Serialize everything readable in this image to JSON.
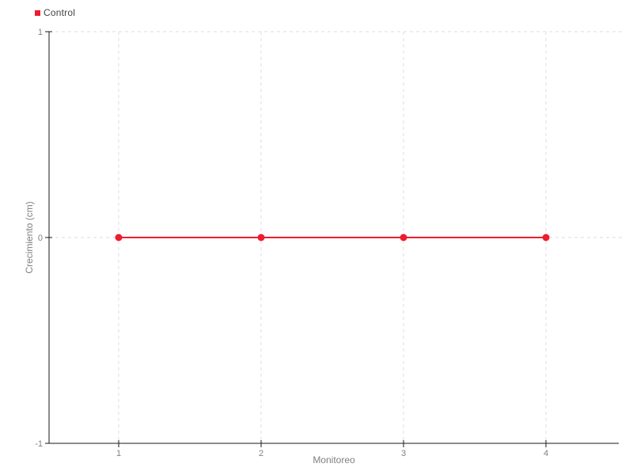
{
  "colors": {
    "background": "#ffffff",
    "grid": "#dddddd",
    "axis": "#1a1a1a",
    "tick_text": "#808080",
    "axis_title_text": "#808080",
    "legend_text": "#444444",
    "series_red": "#ee1c2e"
  },
  "legend": {
    "position": "top-left",
    "items": [
      {
        "label": "Control",
        "color": "#ee1c2e",
        "swatch": "square"
      }
    ]
  },
  "chart_data": {
    "type": "line",
    "title": "",
    "xlabel": "Monitoreo",
    "ylabel": "Crecimiento (cm)",
    "x": [
      1,
      2,
      3,
      4
    ],
    "xtick_labels": [
      "1",
      "2",
      "3",
      "4"
    ],
    "yticks": [
      1,
      0,
      -1
    ],
    "ytick_labels": [
      "1",
      "0",
      "-1"
    ],
    "ylim": [
      -1,
      1
    ],
    "grid": "dashed-major",
    "legend_position": "top-left",
    "marker": "circle",
    "series": [
      {
        "name": "Control",
        "color": "#ee1c2e",
        "values": [
          0,
          0,
          0,
          0
        ]
      }
    ]
  }
}
